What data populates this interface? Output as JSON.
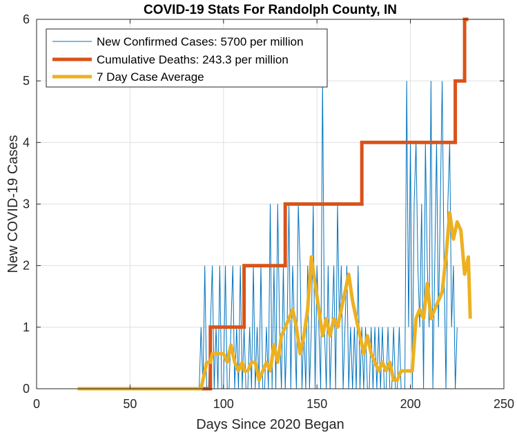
{
  "chart_data": {
    "type": "line",
    "title": "COVID-19 Stats For Randolph County, IN",
    "xlabel": "Days Since 2020 Began",
    "ylabel": "New COVID-19 Cases",
    "xlim": [
      0,
      250
    ],
    "ylim": [
      0,
      6
    ],
    "x_ticks": [
      "0",
      "50",
      "100",
      "150",
      "200",
      "250"
    ],
    "y_ticks": [
      "0",
      "1",
      "2",
      "3",
      "4",
      "5",
      "6"
    ],
    "grid": true,
    "legend_position": "top-left",
    "series": [
      {
        "name": "New Confirmed Cases: 5700 per million",
        "color": "#0072BD",
        "x_start": 22,
        "values": [
          0,
          0,
          0,
          0,
          0,
          0,
          0,
          0,
          0,
          0,
          0,
          0,
          0,
          0,
          0,
          0,
          0,
          0,
          0,
          0,
          0,
          0,
          0,
          0,
          0,
          0,
          0,
          0,
          0,
          0,
          0,
          0,
          0,
          0,
          0,
          0,
          0,
          0,
          0,
          0,
          0,
          0,
          0,
          0,
          0,
          0,
          0,
          0,
          0,
          0,
          0,
          0,
          0,
          0,
          0,
          0,
          0,
          0,
          0,
          0,
          0,
          0,
          0,
          0,
          0,
          0,
          1,
          0,
          2,
          0,
          0,
          1,
          2,
          0,
          1,
          0,
          2,
          0,
          0,
          2,
          0,
          0,
          1,
          2,
          0,
          1,
          0,
          2,
          0,
          1,
          0,
          0,
          1,
          0,
          2,
          0,
          1,
          0,
          2,
          0,
          0,
          1,
          0,
          3,
          0,
          2,
          0,
          3,
          1,
          0,
          2,
          0,
          1,
          3,
          0,
          2,
          1,
          0,
          3,
          2,
          0,
          1,
          0,
          2,
          0,
          1,
          3,
          0,
          2,
          1,
          0,
          5,
          1,
          0,
          2,
          0,
          1,
          2,
          0,
          3,
          1,
          2,
          0,
          1,
          2,
          0,
          1,
          0,
          1,
          0,
          2,
          0,
          1,
          0,
          1,
          0,
          0,
          1,
          0,
          1,
          0,
          1,
          0,
          1,
          0,
          0,
          1,
          0,
          0,
          1,
          0,
          0,
          1,
          0,
          0,
          0,
          5,
          1,
          4,
          0,
          3,
          4,
          2,
          1,
          3,
          0,
          4,
          2,
          1,
          5,
          0,
          2,
          4,
          1,
          3,
          5,
          2,
          0,
          3,
          4,
          1,
          2,
          0,
          1
        ]
      },
      {
        "name": "Cumulative Deaths: 243.3 per million",
        "color": "#D95319",
        "steps": [
          {
            "x": 22,
            "y": 0
          },
          {
            "x": 93,
            "y": 1
          },
          {
            "x": 111,
            "y": 2
          },
          {
            "x": 133,
            "y": 3
          },
          {
            "x": 174,
            "y": 4
          },
          {
            "x": 224,
            "y": 5
          },
          {
            "x": 229,
            "y": 6
          }
        ],
        "x_end": 231
      },
      {
        "name": "7 Day Case Average",
        "color": "#EDB120",
        "points": [
          [
            22,
            0
          ],
          [
            88,
            0
          ],
          [
            89,
            0.14
          ],
          [
            91,
            0.43
          ],
          [
            93,
            0.43
          ],
          [
            94,
            0.57
          ],
          [
            96,
            0.57
          ],
          [
            98,
            0.57
          ],
          [
            100,
            0.57
          ],
          [
            102,
            0.43
          ],
          [
            104,
            0.71
          ],
          [
            106,
            0.43
          ],
          [
            108,
            0.29
          ],
          [
            110,
            0.43
          ],
          [
            111,
            0.29
          ],
          [
            113,
            0.29
          ],
          [
            115,
            0.43
          ],
          [
            117,
            0.43
          ],
          [
            119,
            0.14
          ],
          [
            121,
            0.29
          ],
          [
            123,
            0.43
          ],
          [
            125,
            0.29
          ],
          [
            127,
            0.71
          ],
          [
            129,
            0.43
          ],
          [
            131,
            0.86
          ],
          [
            133,
            1.0
          ],
          [
            135,
            1.14
          ],
          [
            137,
            1.29
          ],
          [
            139,
            1.0
          ],
          [
            141,
            0.57
          ],
          [
            143,
            0.86
          ],
          [
            145,
            1.29
          ],
          [
            147,
            2.14
          ],
          [
            149,
            1.71
          ],
          [
            151,
            1.29
          ],
          [
            153,
            0.86
          ],
          [
            155,
            1.14
          ],
          [
            157,
            0.86
          ],
          [
            159,
            1.14
          ],
          [
            161,
            1.0
          ],
          [
            163,
            1.29
          ],
          [
            165,
            1.57
          ],
          [
            167,
            1.86
          ],
          [
            169,
            1.43
          ],
          [
            171,
            1.14
          ],
          [
            173,
            0.86
          ],
          [
            175,
            0.57
          ],
          [
            177,
            0.86
          ],
          [
            179,
            0.57
          ],
          [
            181,
            0.43
          ],
          [
            183,
            0.29
          ],
          [
            185,
            0.43
          ],
          [
            187,
            0.29
          ],
          [
            189,
            0.43
          ],
          [
            191,
            0.14
          ],
          [
            193,
            0.14
          ],
          [
            195,
            0.29
          ],
          [
            197,
            0.29
          ],
          [
            199,
            0.29
          ],
          [
            201,
            0.29
          ],
          [
            203,
            1.14
          ],
          [
            205,
            1.29
          ],
          [
            207,
            1.14
          ],
          [
            209,
            1.71
          ],
          [
            211,
            1.14
          ],
          [
            213,
            1.29
          ],
          [
            215,
            1.43
          ],
          [
            217,
            1.57
          ],
          [
            219,
            2.14
          ],
          [
            221,
            2.86
          ],
          [
            223,
            2.43
          ],
          [
            225,
            2.71
          ],
          [
            227,
            2.57
          ],
          [
            229,
            1.86
          ],
          [
            231,
            2.14
          ],
          [
            232,
            1.14
          ]
        ]
      }
    ]
  }
}
